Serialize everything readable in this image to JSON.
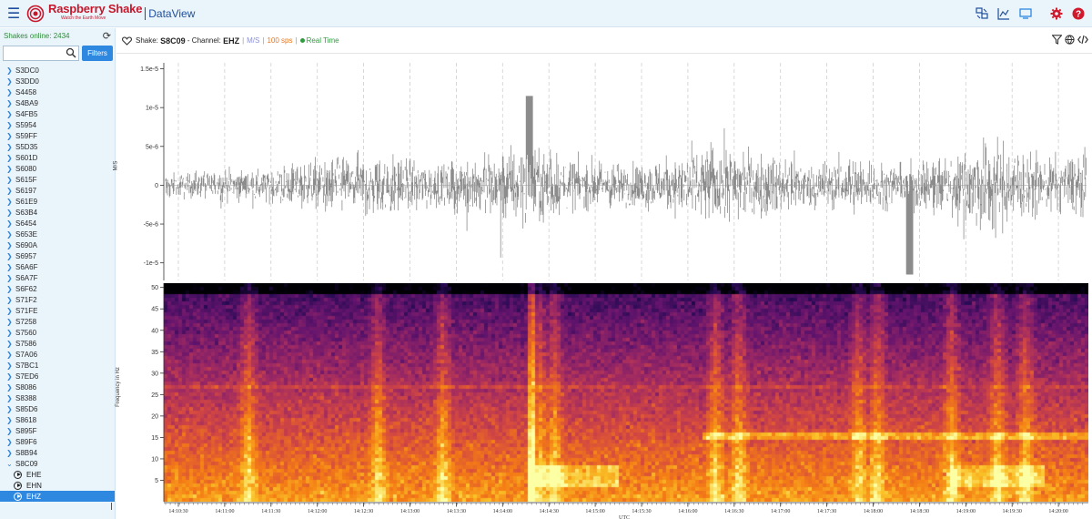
{
  "header": {
    "brand_name": "Raspberry Shake",
    "brand_tagline": "Watch the Earth Move",
    "app_title": "DataView",
    "colors": {
      "brand": "#c6172b",
      "accent": "#1f4e9c"
    },
    "icons": [
      "station-compare-icon",
      "chart-icon",
      "monitor-icon",
      "settings-gear-icon",
      "help-icon"
    ]
  },
  "sidebar": {
    "online_label": "Shakes online: 2434",
    "search_placeholder": "",
    "filters_label": "Filters",
    "shakes": [
      "S3DC0",
      "S3DD0",
      "S4458",
      "S4BA9",
      "S4FB5",
      "S5954",
      "S59FF",
      "S5D35",
      "S601D",
      "S6080",
      "S615F",
      "S6197",
      "S61E9",
      "S63B4",
      "S6454",
      "S653E",
      "S690A",
      "S6957",
      "S6A6F",
      "S6A7F",
      "S6F62",
      "S71F2",
      "S71FE",
      "S7258",
      "S7560",
      "S7586",
      "S7A06",
      "S7BC1",
      "S7ED6",
      "S8086",
      "S8388",
      "S85D6",
      "S8618",
      "S895F",
      "S89F6",
      "S8B94"
    ],
    "expanded_shake": "S8C09",
    "channels": [
      {
        "name": "EHE",
        "active": false
      },
      {
        "name": "EHN",
        "active": false
      },
      {
        "name": "EHZ",
        "active": true
      }
    ]
  },
  "info": {
    "shake_prefix": "Shake:",
    "shake_id": "S8C09",
    "channel_prefix": "- Channel:",
    "channel": "EHZ",
    "unit": "M/S",
    "sps": "100 sps",
    "realtime": "Real Time"
  },
  "chart_data": [
    {
      "type": "line",
      "ylabel": "M/S",
      "ylim": [
        -1.25e-05,
        1.6e-05
      ],
      "yticks": [
        "1.5e-5",
        "1e-5",
        "5e-6",
        "0",
        "-5e-6",
        "-1e-5"
      ],
      "ytick_values": [
        1.5e-05,
        1e-05,
        5e-06,
        0,
        -5e-06,
        -1e-05
      ],
      "series_color": "#8c8c8c",
      "grid": "vertical dashed"
    },
    {
      "type": "heatmap",
      "ylabel": "Frequency in Hz",
      "ylim": [
        0,
        51
      ],
      "yticks": [
        "50",
        "45",
        "40",
        "35",
        "30",
        "25",
        "20",
        "15",
        "10",
        "5"
      ],
      "ytick_values": [
        50,
        45,
        40,
        35,
        30,
        25,
        20,
        15,
        10,
        5
      ],
      "xlabel": "UTC",
      "xticks": [
        "14:10:30",
        "14:11:00",
        "14:11:30",
        "14:12:00",
        "14:12:30",
        "14:13:00",
        "14:13:30",
        "14:14:00",
        "14:14:30",
        "14:15:00",
        "14:15:30",
        "14:16:00",
        "14:16:30",
        "14:17:00",
        "14:17:30",
        "14:18:00",
        "14:18:30",
        "14:19:00",
        "14:19:30",
        "14:20:00"
      ],
      "colormap": "inferno"
    }
  ]
}
